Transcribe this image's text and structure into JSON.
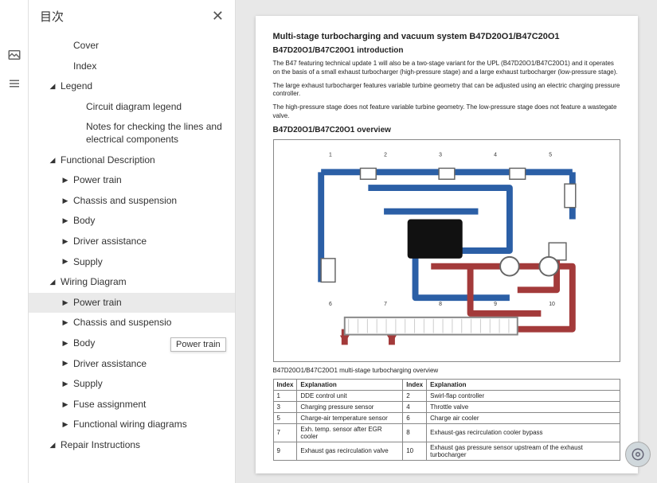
{
  "sidebar": {
    "title": "目次",
    "items": [
      {
        "label": "Cover",
        "indent": 1,
        "toggle": ""
      },
      {
        "label": "Index",
        "indent": 1,
        "toggle": ""
      },
      {
        "label": "Legend",
        "indent": 0,
        "toggle": "◢"
      },
      {
        "label": "Circuit diagram legend",
        "indent": 2,
        "toggle": ""
      },
      {
        "label": "Notes for checking the lines and electrical components",
        "indent": 2,
        "toggle": ""
      },
      {
        "label": "Functional Description",
        "indent": 0,
        "toggle": "◢"
      },
      {
        "label": "Power train",
        "indent": 1,
        "toggle": "▶"
      },
      {
        "label": "Chassis and suspension",
        "indent": 1,
        "toggle": "▶"
      },
      {
        "label": "Body",
        "indent": 1,
        "toggle": "▶"
      },
      {
        "label": "Driver assistance",
        "indent": 1,
        "toggle": "▶"
      },
      {
        "label": "Supply",
        "indent": 1,
        "toggle": "▶"
      },
      {
        "label": "Wiring Diagram",
        "indent": 0,
        "toggle": "◢"
      },
      {
        "label": "Power train",
        "indent": 1,
        "toggle": "▶",
        "selected": true
      },
      {
        "label": "Chassis and suspensio",
        "indent": 1,
        "toggle": "▶"
      },
      {
        "label": "Body",
        "indent": 1,
        "toggle": "▶"
      },
      {
        "label": "Driver assistance",
        "indent": 1,
        "toggle": "▶"
      },
      {
        "label": "Supply",
        "indent": 1,
        "toggle": "▶"
      },
      {
        "label": "Fuse assignment",
        "indent": 1,
        "toggle": "▶"
      },
      {
        "label": "Functional wiring diagrams",
        "indent": 1,
        "toggle": "▶"
      },
      {
        "label": "Repair Instructions",
        "indent": 0,
        "toggle": "◢"
      }
    ]
  },
  "tooltip": "Power train",
  "doc": {
    "title": "Multi-stage turbocharging and vacuum system B47D20O1/B47C20O1",
    "subtitle1": "B47D20O1/B47C20O1 introduction",
    "p1": "The B47 featuring technical update 1 will also be a two-stage variant for the UPL (B47D20O1/B47C20O1) and it operates on the basis of a small exhaust turbocharger (high-pressure stage) and a large exhaust turbocharger (low-pressure stage).",
    "p2": "The large exhaust turbocharger features variable turbine geometry that can be adjusted using an electric charging pressure controller.",
    "p3": "The high-pressure stage does not feature variable turbine geometry. The low-pressure stage does not feature a wastegate valve.",
    "subtitle2": "B47D20O1/B47C20O1 overview",
    "caption": "B47D20O1/B47C20O1 multi-stage turbocharging overview",
    "table": {
      "headers": [
        "Index",
        "Explanation",
        "Index",
        "Explanation"
      ],
      "rows": [
        [
          "1",
          "DDE control unit",
          "2",
          "Swirl-flap controller"
        ],
        [
          "3",
          "Charging pressure sensor",
          "4",
          "Throttle valve"
        ],
        [
          "5",
          "Charge-air temperature sensor",
          "6",
          "Charge air cooler"
        ],
        [
          "7",
          "Exh. temp. sensor after EGR cooler",
          "8",
          "Exhaust-gas recirculation cooler bypass"
        ],
        [
          "9",
          "Exhaust gas recirculation valve",
          "10",
          "Exhaust gas pressure sensor upstream of the exhaust turbocharger"
        ]
      ]
    }
  },
  "diagram": {
    "colors": {
      "intake": "#2b5fa6",
      "exhaust": "#a33a3a",
      "block": "#111",
      "grid": "#999",
      "bg": "#ffffff"
    }
  }
}
